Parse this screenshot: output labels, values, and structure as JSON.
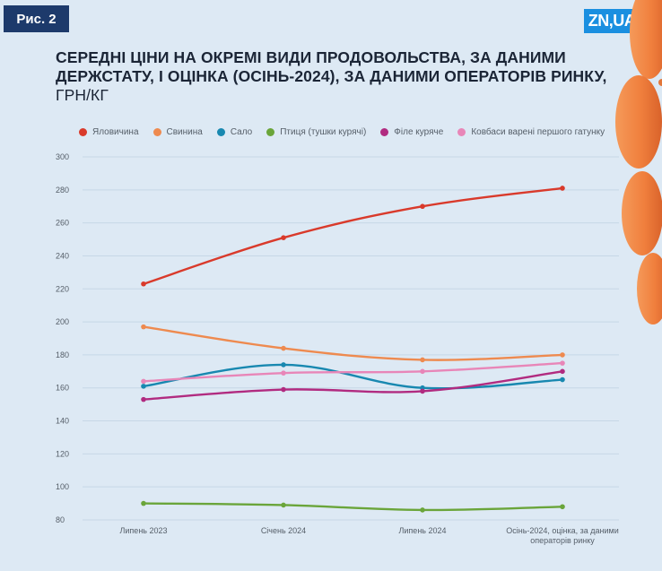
{
  "figure_label": "Рис. 2",
  "brand": "ZN,UA",
  "title_main": "СЕРЕДНІ ЦІНИ НА ОКРЕМІ ВИДИ ПРОДОВОЛЬСТВА, ЗА ДАНИМИ ДЕРЖСТАТУ, І ОЦІНКА (ОСІНЬ-2024), ЗА ДАНИМИ ОПЕРАТОРІВ РИНКУ,",
  "title_unit": "ГРН/КГ",
  "colors": {
    "background": "#dde9f4",
    "badge": "#1d3a6b",
    "brand": "#1a8fe0",
    "grid": "#c6d7e6",
    "sausage": "#f07f3d"
  },
  "chart_data": {
    "type": "line",
    "title": "Середні ціни на окремі види продовольства, за даними Держстату, і оцінка (осінь-2024), за даними операторів ринку, грн/кг",
    "xlabel": "",
    "ylabel": "",
    "categories": [
      "Липень 2023",
      "Січень 2024",
      "Липень 2024",
      "Осінь-2024, оцінка, за даними операторів ринку"
    ],
    "ylim": [
      80,
      300
    ],
    "yticks": [
      80,
      100,
      120,
      140,
      160,
      180,
      200,
      220,
      240,
      260,
      280,
      300
    ],
    "grid": true,
    "legend_position": "top",
    "series": [
      {
        "name": "Яловичина",
        "color": "#d93a2b",
        "values": [
          223,
          251,
          270,
          281
        ]
      },
      {
        "name": "Свинина",
        "color": "#ee8a4f",
        "values": [
          197,
          184,
          177,
          180
        ]
      },
      {
        "name": "Сало",
        "color": "#1888b0",
        "values": [
          161,
          174,
          160,
          165
        ]
      },
      {
        "name": "Птиця (тушки курячі)",
        "color": "#6aa53a",
        "values": [
          90,
          89,
          86,
          88
        ]
      },
      {
        "name": "Філе куряче",
        "color": "#b12b80",
        "values": [
          153,
          159,
          158,
          170
        ]
      },
      {
        "name": "Ковбаси варені першого гатунку",
        "color": "#e886b8",
        "values": [
          164,
          169,
          170,
          175
        ]
      }
    ]
  }
}
